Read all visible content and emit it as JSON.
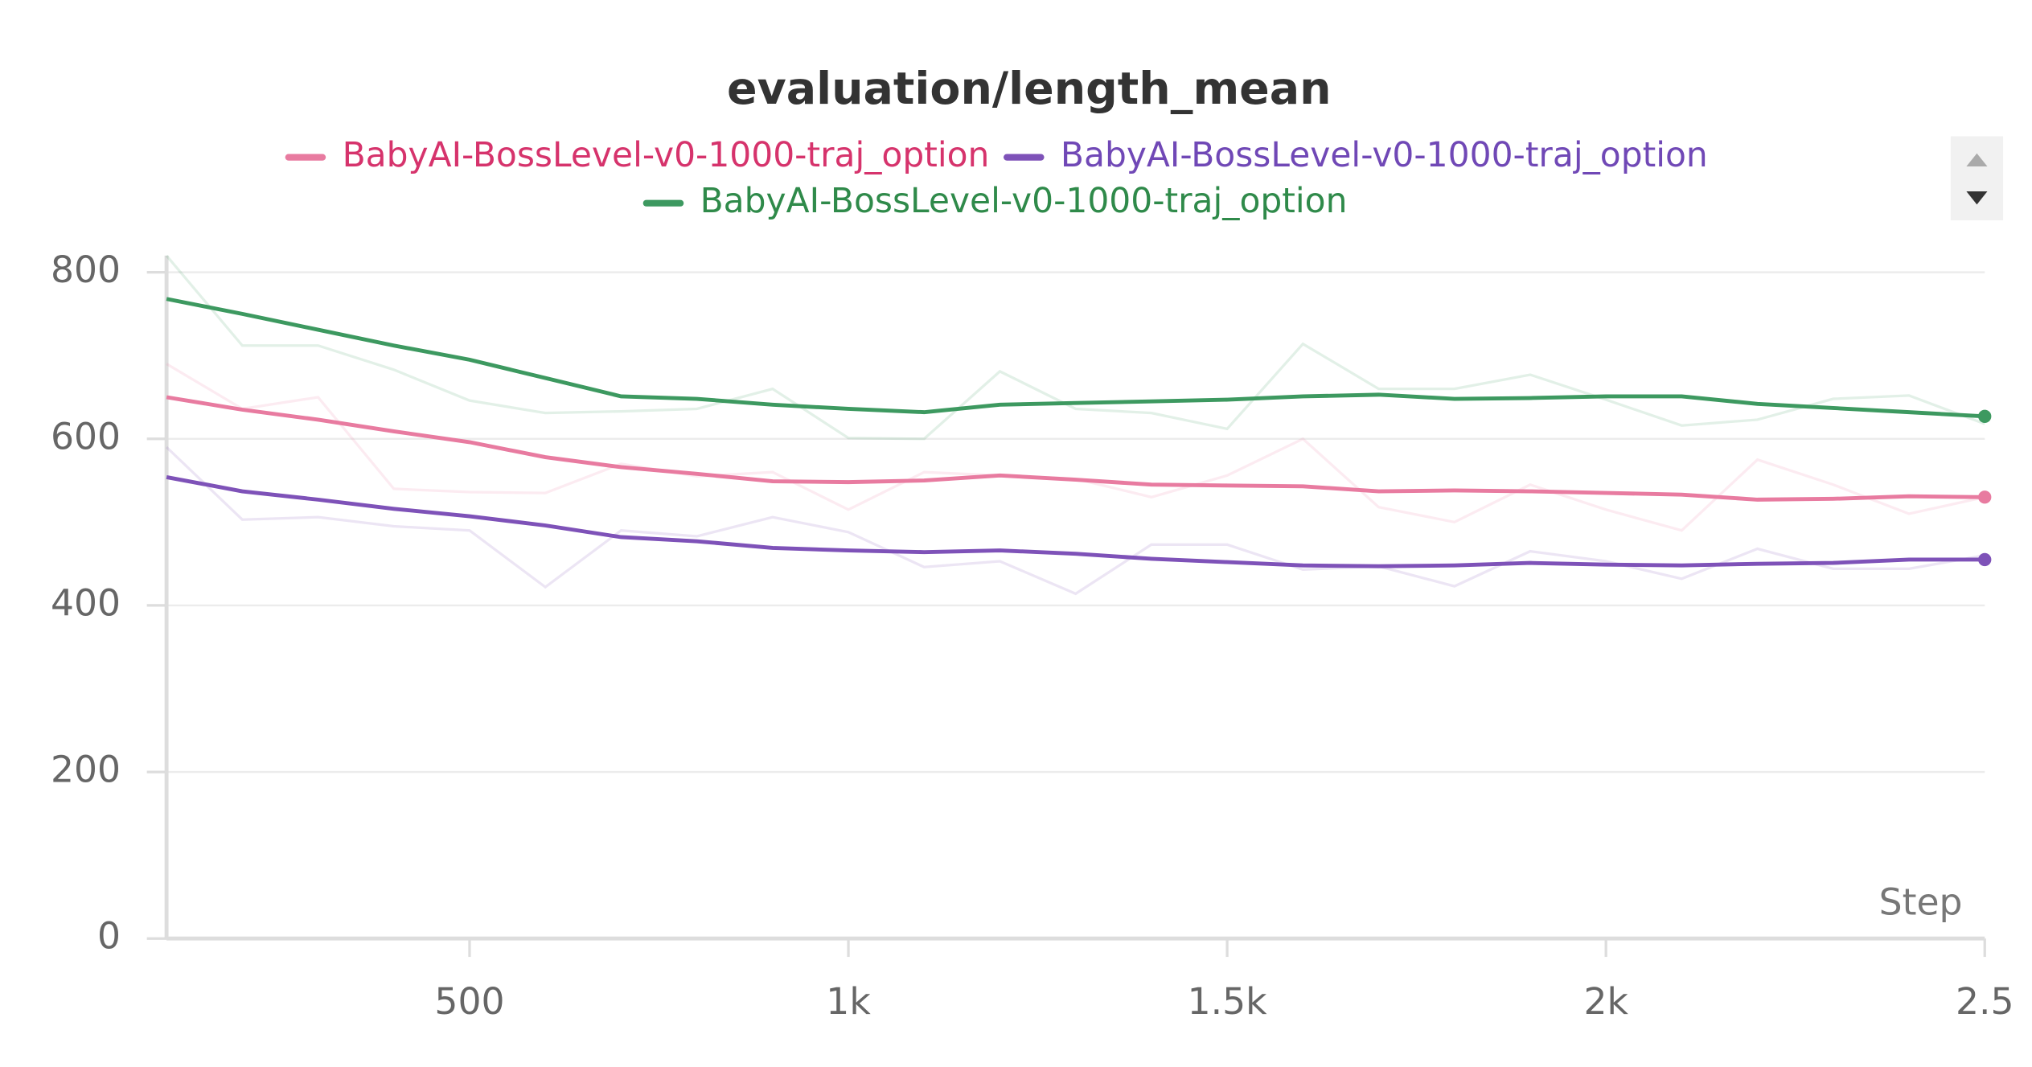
{
  "chart_data": {
    "type": "line",
    "title": "evaluation/length_mean",
    "x_label": "Step",
    "x": [
      100,
      200,
      300,
      400,
      500,
      600,
      700,
      800,
      900,
      1000,
      1100,
      1200,
      1300,
      1400,
      1500,
      1600,
      1700,
      1800,
      1900,
      2000,
      2100,
      2200,
      2300,
      2400,
      2500
    ],
    "xlim": [
      100,
      2500
    ],
    "xticks": [
      500,
      {
        "value": 1000,
        "label": "1k"
      },
      {
        "value": 1500,
        "label": "1.5k"
      },
      {
        "value": 2000,
        "label": "2k"
      },
      {
        "value": 2500,
        "label": "2.5"
      }
    ],
    "ylim": [
      0,
      820
    ],
    "yticks": [
      0,
      200,
      400,
      600,
      800
    ],
    "grid": true,
    "series": [
      {
        "name": "BabyAI-BossLevel-v0-1000-traj_option",
        "color": "#e87ba0",
        "text_color": "#d6336c",
        "values": [
          650,
          635,
          623,
          609,
          596,
          578,
          566,
          558,
          549,
          548,
          550,
          556,
          551,
          545,
          544,
          543,
          537,
          538,
          537,
          535,
          533,
          527,
          528,
          531,
          530
        ],
        "raw_values": [
          690,
          636,
          650,
          540,
          536,
          535,
          570,
          555,
          560,
          515,
          560,
          556,
          552,
          530,
          556,
          600,
          518,
          500,
          545,
          515,
          490,
          575,
          545,
          510,
          530
        ]
      },
      {
        "name": "BabyAI-BossLevel-v0-1000-traj_option",
        "color": "#7e52b8",
        "text_color": "#7048b6",
        "values": [
          554,
          537,
          527,
          516,
          507,
          496,
          482,
          477,
          469,
          466,
          464,
          466,
          462,
          456,
          452,
          448,
          447,
          448,
          451,
          449,
          448,
          450,
          451,
          455,
          455
        ],
        "raw_values": [
          590,
          503,
          506,
          495,
          490,
          422,
          490,
          483,
          506,
          488,
          446,
          453,
          414,
          473,
          473,
          443,
          447,
          423,
          465,
          453,
          432,
          468,
          444,
          444,
          460
        ]
      },
      {
        "name": "BabyAI-BossLevel-v0-1000-traj_option",
        "color": "#3d9960",
        "text_color": "#2f8a4a",
        "values": [
          768,
          750,
          731,
          712,
          695,
          673,
          651,
          648,
          641,
          636,
          632,
          641,
          643,
          645,
          647,
          651,
          653,
          648,
          649,
          651,
          651,
          642,
          637,
          632,
          627
        ],
        "raw_values": [
          820,
          712,
          712,
          683,
          646,
          631,
          633,
          636,
          660,
          601,
          600,
          681,
          636,
          631,
          612,
          714,
          660,
          660,
          677,
          647,
          616,
          623,
          648,
          652,
          618
        ]
      }
    ]
  }
}
